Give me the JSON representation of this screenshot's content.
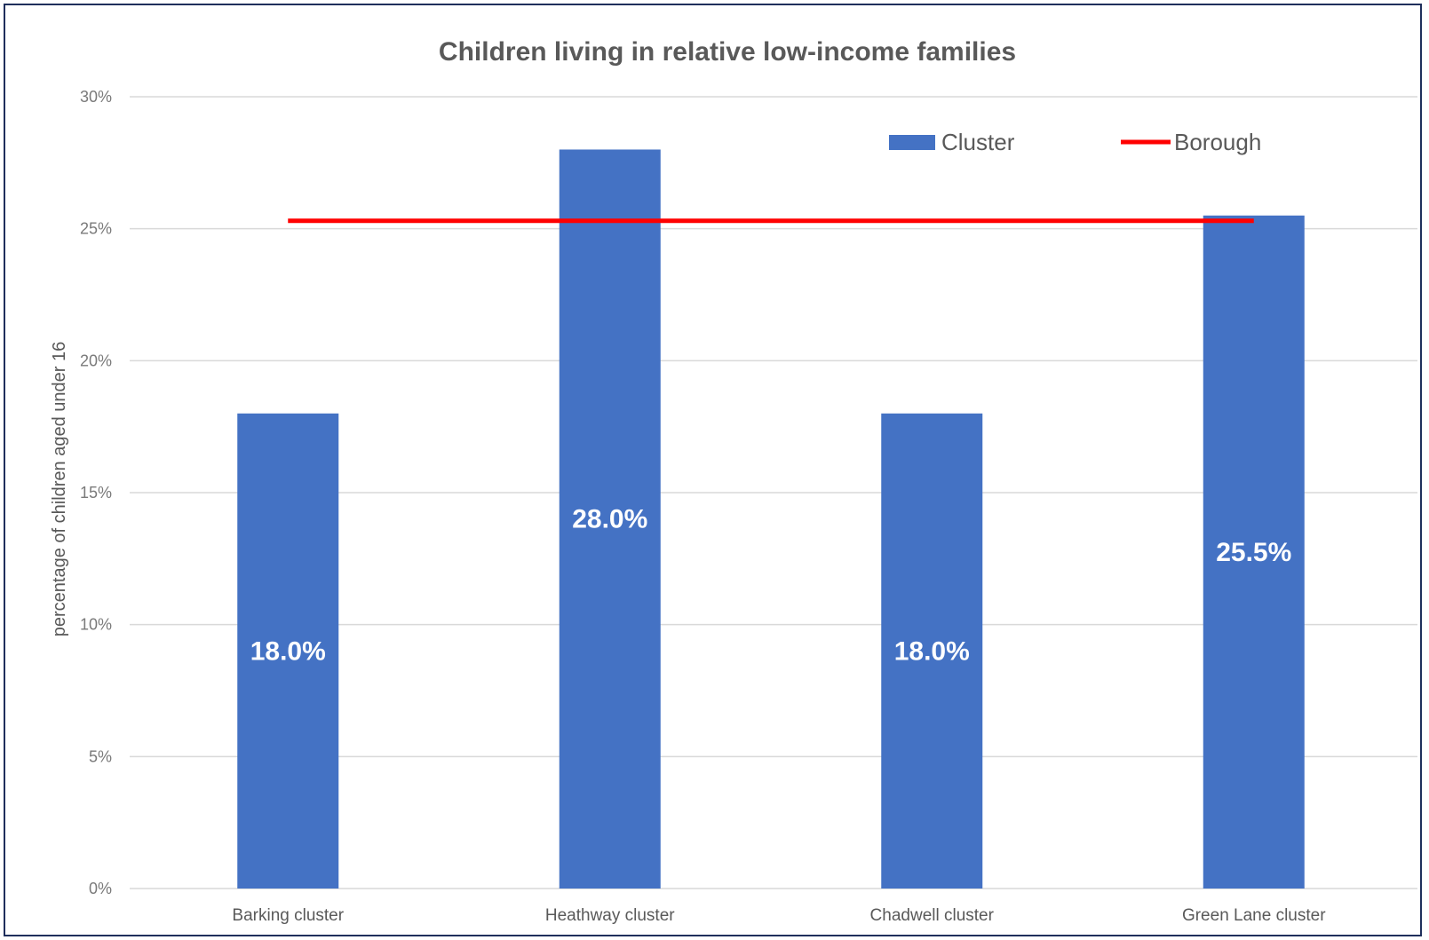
{
  "chart_data": {
    "type": "bar",
    "title": "Children living in relative low-income families",
    "ylabel": "percentage of children aged under 16",
    "xlabel": "",
    "categories": [
      "Barking cluster",
      "Heathway cluster",
      "Chadwell cluster",
      "Green Lane cluster"
    ],
    "series": [
      {
        "name": "Cluster",
        "kind": "bar",
        "color": "#4472c4",
        "values": [
          18.0,
          28.0,
          18.0,
          25.5
        ],
        "data_labels": [
          "18.0%",
          "28.0%",
          "18.0%",
          "25.5%"
        ]
      },
      {
        "name": "Borough",
        "kind": "line",
        "color": "#ff0000",
        "values": [
          25.3,
          25.3,
          25.3,
          25.3
        ]
      }
    ],
    "ylim": [
      0,
      30
    ],
    "yticks": [
      0,
      5,
      10,
      15,
      20,
      25,
      30
    ],
    "ytick_labels": [
      "0%",
      "5%",
      "10%",
      "15%",
      "20%",
      "25%",
      "30%"
    ],
    "grid": true,
    "legend_position": "top-right"
  }
}
